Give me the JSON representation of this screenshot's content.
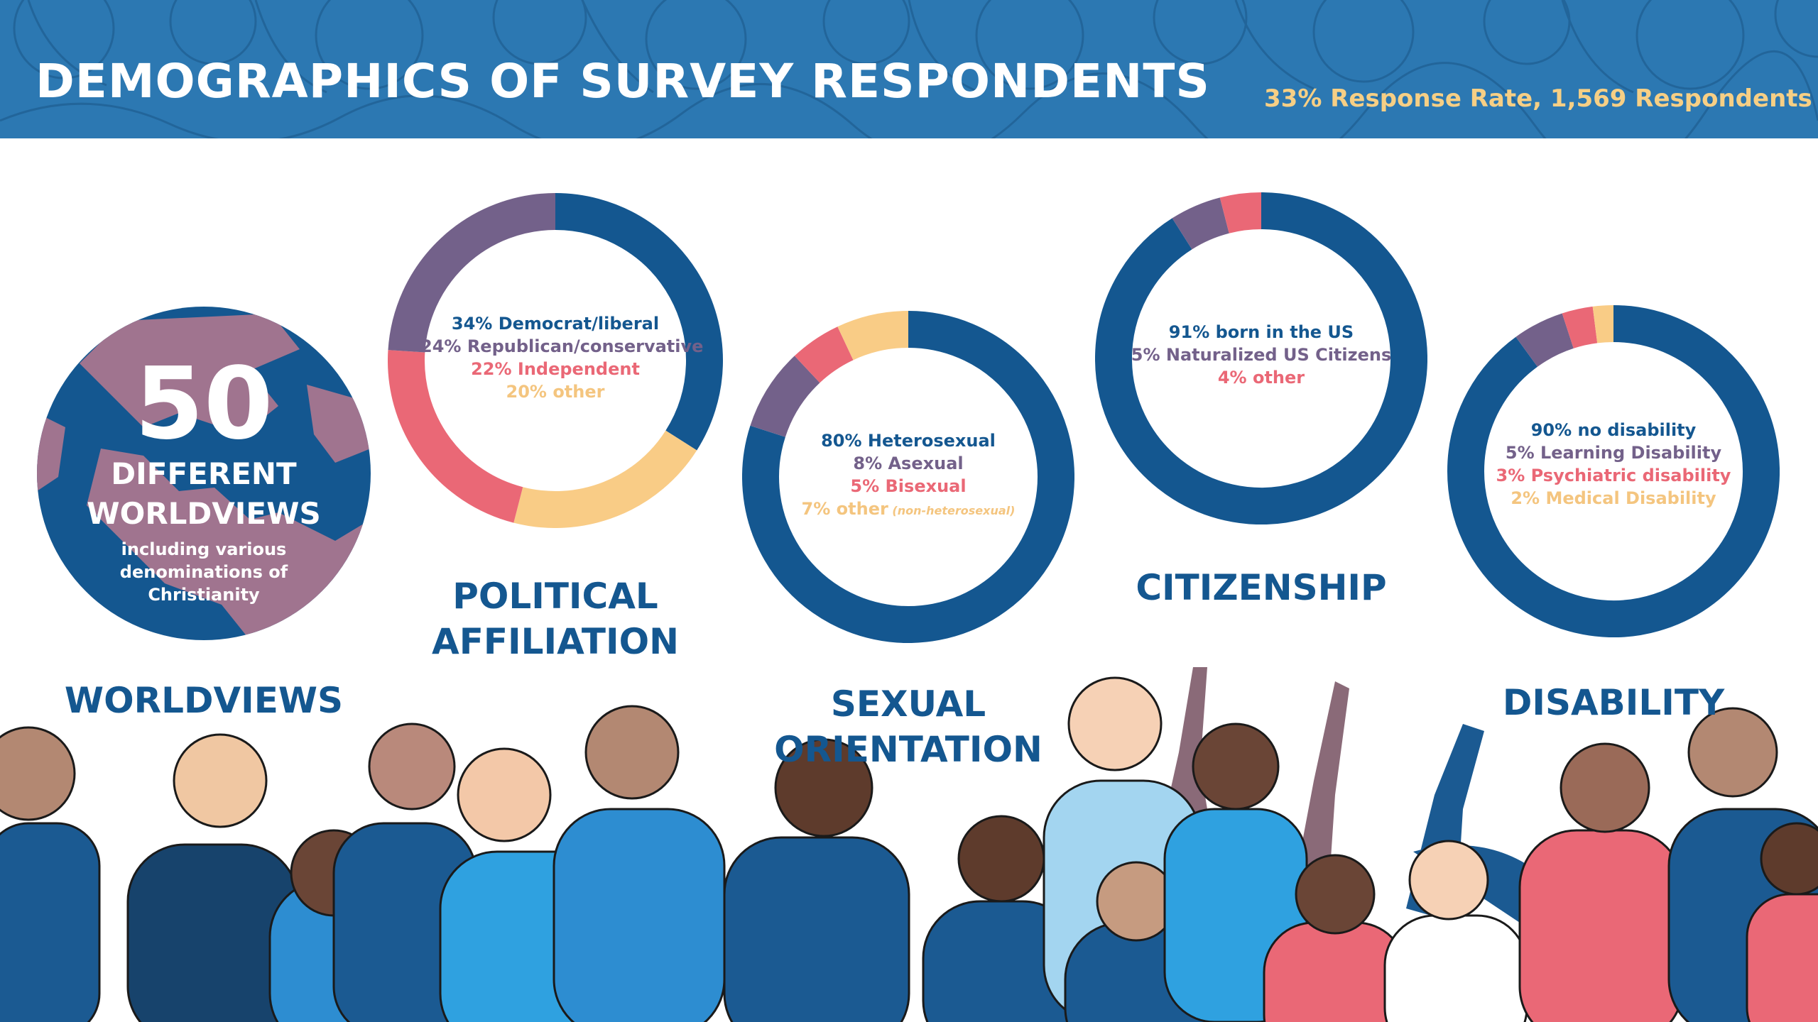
{
  "header": {
    "title": "DEMOGRAPHICS OF SURVEY RESPONDENTS",
    "subtitle": "33% Response Rate, 1,569 Respondents"
  },
  "worldviews": {
    "number": "50",
    "line1": "DIFFERENT",
    "line2": "WORLDVIEWS",
    "detail": [
      "including various",
      "denominations of",
      "Christianity"
    ],
    "category_title": "WORLDVIEWS"
  },
  "colors": {
    "navy": "#145790",
    "purple": "#73618a",
    "pink": "#ea6876",
    "peach": "#f9cc86",
    "header_blue": "#2c78b2",
    "globe_land": "#a0748f"
  },
  "chart_data": [
    {
      "type": "pie",
      "style": "donut",
      "category_title": [
        "POLITICAL",
        "AFFILIATION"
      ],
      "slices": [
        {
          "pct": "34%",
          "label": "Democrat/liberal",
          "value": 34,
          "color": "#145790"
        },
        {
          "pct": "24%",
          "label": "Republican/conservative",
          "value": 24,
          "color": "#73618a"
        },
        {
          "pct": "22%",
          "label": "Independent",
          "value": 22,
          "color": "#ea6876"
        },
        {
          "pct": "20%",
          "label": "other",
          "value": 20,
          "color": "#f9cc86"
        }
      ],
      "draw_order": [
        0,
        3,
        2,
        1
      ]
    },
    {
      "type": "pie",
      "style": "donut",
      "category_title": [
        "SEXUAL",
        "ORIENTATION"
      ],
      "slices": [
        {
          "pct": "80%",
          "label": "Heterosexual",
          "value": 80,
          "color": "#145790"
        },
        {
          "pct": "8%",
          "label": "Asexual",
          "value": 8,
          "color": "#73618a"
        },
        {
          "pct": "5%",
          "label": "Bisexual",
          "value": 5,
          "color": "#ea6876"
        },
        {
          "pct": "7%",
          "label": "other",
          "note": "(non-heterosexual)",
          "value": 7,
          "color": "#f9cc86"
        }
      ],
      "draw_order": [
        0,
        1,
        2,
        3
      ]
    },
    {
      "type": "pie",
      "style": "donut",
      "category_title": [
        "CITIZENSHIP"
      ],
      "slices": [
        {
          "pct": "91%",
          "label": "born in the US",
          "value": 91,
          "color": "#145790"
        },
        {
          "pct": "5%",
          "label": "Naturalized US Citizens",
          "value": 5,
          "color": "#73618a"
        },
        {
          "pct": "4%",
          "label": "other",
          "value": 4,
          "color": "#ea6876"
        }
      ],
      "draw_order": [
        0,
        1,
        2
      ]
    },
    {
      "type": "pie",
      "style": "donut",
      "category_title": [
        "DISABILITY"
      ],
      "slices": [
        {
          "pct": "90%",
          "label": "no disability",
          "value": 90,
          "color": "#145790"
        },
        {
          "pct": "5%",
          "label": "Learning Disability",
          "value": 5,
          "color": "#73618a"
        },
        {
          "pct": "3%",
          "label": "Psychiatric disability",
          "value": 3,
          "color": "#ea6876"
        },
        {
          "pct": "2%",
          "label": "Medical Disability",
          "value": 2,
          "color": "#f9cc86"
        }
      ],
      "draw_order": [
        0,
        1,
        2,
        3
      ]
    }
  ]
}
